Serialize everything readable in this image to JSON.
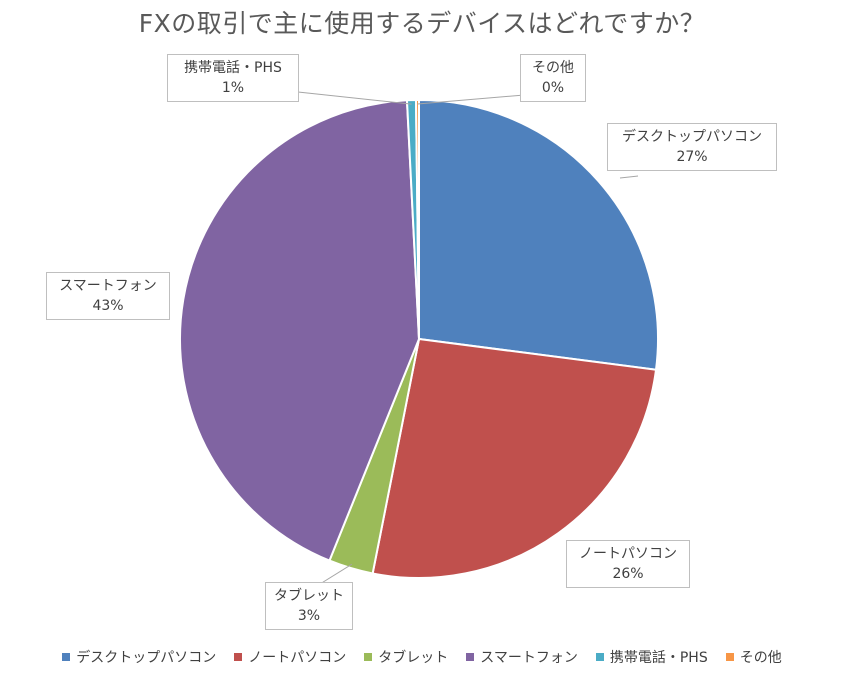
{
  "chart_data": {
    "type": "pie",
    "title": "FXの取引で主に使用するデバイスはどれですか？",
    "slices": [
      {
        "label": "デスクトップパソコン",
        "value": 27,
        "display": "27%",
        "color": "#4f81bd"
      },
      {
        "label": "ノートパソコン",
        "value": 26,
        "display": "26%",
        "color": "#c0504d"
      },
      {
        "label": "タブレット",
        "value": 3,
        "display": "3%",
        "color": "#9bbb59"
      },
      {
        "label": "スマートフォン",
        "value": 43,
        "display": "43%",
        "color": "#8064a2"
      },
      {
        "label": "携帯電話・PHS",
        "value": 0.6,
        "display": "1%",
        "color": "#4bacc6"
      },
      {
        "label": "その他",
        "value": 0.2,
        "display": "0%",
        "color": "#f79646"
      }
    ],
    "legend_position": "bottom",
    "data_labels": "callouts"
  }
}
